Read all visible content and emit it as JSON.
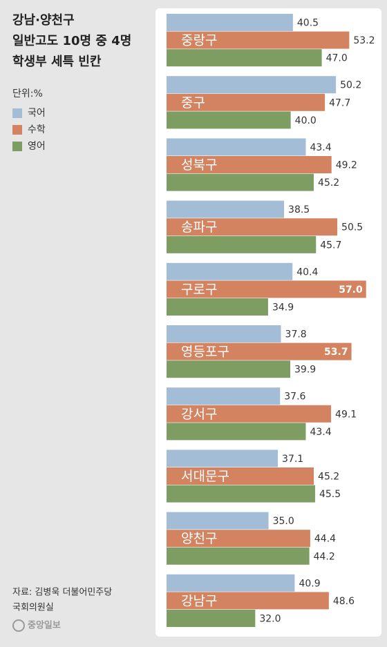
{
  "chart_data": {
    "type": "grouped-hbar",
    "title": [
      "강남·양천구",
      "일반고도 10명 중 4명",
      "학생부 세특 빈칸"
    ],
    "unit": "단위:%",
    "source": [
      "자료: 김병욱 더불어민주당",
      "국회의원실"
    ],
    "logo": "중앙일보",
    "categories": [
      "중랑구",
      "중구",
      "성북구",
      "송파구",
      "구로구",
      "영등포구",
      "강서구",
      "서대문구",
      "양천구",
      "강남구"
    ],
    "series": [
      {
        "name": "국어",
        "color": "#a4bdd6",
        "values": [
          40.5,
          50.2,
          43.4,
          38.5,
          40.4,
          37.8,
          37.6,
          37.1,
          35.0,
          40.9
        ],
        "value_labels": [
          "40.5",
          "50.2",
          "43.4",
          "38.5",
          "40.4",
          "37.8",
          "37.6",
          "37.1",
          "35.0",
          "40.9"
        ]
      },
      {
        "name": "수학",
        "color": "#d3835f",
        "values": [
          53.2,
          47.7,
          49.2,
          50.5,
          57.0,
          53.7,
          49.1,
          45.2,
          44.4,
          48.6
        ],
        "value_labels": [
          "53.2",
          "47.7",
          "49.2",
          "50.5",
          "57.0",
          "53.7",
          "49.1",
          "45.2",
          "44.4",
          "48.6"
        ]
      },
      {
        "name": "영어",
        "color": "#7e9d63",
        "values": [
          47.0,
          40.0,
          45.2,
          45.7,
          34.9,
          39.9,
          43.4,
          45.5,
          44.2,
          32.0
        ],
        "value_labels": [
          "47.0",
          "40.0",
          "45.2",
          "45.7",
          "34.9",
          "39.9",
          "43.4",
          "45.5",
          "44.2",
          "32.0"
        ]
      }
    ],
    "xlim": [
      12,
      60
    ]
  }
}
